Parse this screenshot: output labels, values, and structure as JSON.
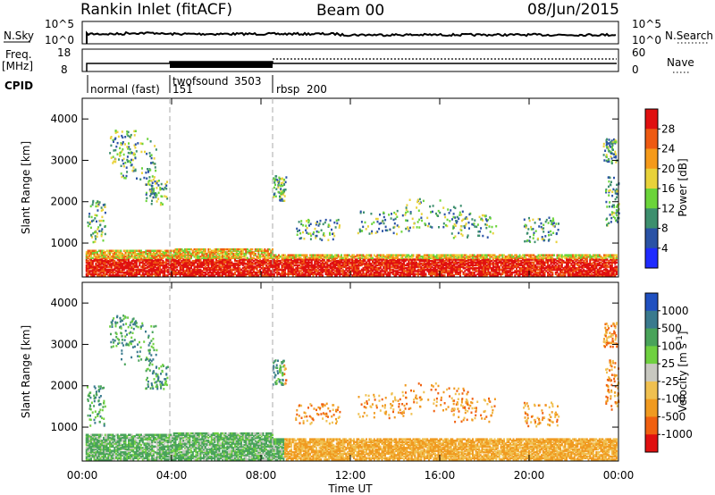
{
  "header": {
    "station": "Rankin Inlet (fitACF)",
    "beam": "Beam 00",
    "date": "08/Jun/2015"
  },
  "panels": {
    "nsky_label": "N.Sky",
    "nsky_ticks": [
      "10^5",
      "10^0"
    ],
    "nsearch_label": "N.Search",
    "nsearch_ticks": [
      "10^5",
      "10^0"
    ],
    "freq_label_1": "Freq.",
    "freq_label_2": "[MHz]",
    "freq_ticks": [
      "18",
      "8"
    ],
    "nave_label": "Nave",
    "nave_ticks": [
      "60",
      "0"
    ],
    "cpid_label": "CPID",
    "modes": [
      {
        "name": "normal (fast)",
        "id": "",
        "start": 0.0
      },
      {
        "name": "twofsound",
        "id": "3503",
        "id2": "151",
        "start": 4.0
      },
      {
        "name": "rbsp",
        "id": "200",
        "start": 8.5
      }
    ]
  },
  "chart_data": [
    {
      "type": "heatmap",
      "name": "power-panel",
      "ylabel": "Slant Range [km]",
      "xlabel": "",
      "ylim": [
        180,
        4500
      ],
      "xlim": [
        0,
        24
      ],
      "yticks": [
        1000,
        2000,
        3000,
        4000
      ],
      "colorbar_label": "Power [dB]",
      "colorbar_ticks": [
        "4",
        "8",
        "12",
        "16",
        "20",
        "24",
        "28"
      ],
      "colorbar_colors": [
        "#1f2bff",
        "#2a52a5",
        "#3d8f6e",
        "#6bd43a",
        "#e8d23a",
        "#f59a1a",
        "#ee5a12",
        "#e01010"
      ]
    },
    {
      "type": "heatmap",
      "name": "velocity-panel",
      "ylabel": "Slant Range [km]",
      "xlabel": "Time UT",
      "ylim": [
        180,
        4500
      ],
      "xlim": [
        0,
        24
      ],
      "yticks": [
        1000,
        2000,
        3000,
        4000
      ],
      "xticks": [
        "00:00",
        "04:00",
        "08:00",
        "12:00",
        "16:00",
        "20:00",
        "00:00"
      ],
      "colorbar_label": "Velocity [m s^-1]",
      "colorbar_ticks": [
        "1000",
        "500",
        "100",
        "25",
        "-25",
        "-100",
        "-500",
        "-1000"
      ],
      "colorbar_colors": [
        "#2050c0",
        "#3a7a8e",
        "#49a35a",
        "#6fd040",
        "#c8c8c0",
        "#f0c050",
        "#f09a20",
        "#f06010",
        "#e01010"
      ]
    }
  ]
}
